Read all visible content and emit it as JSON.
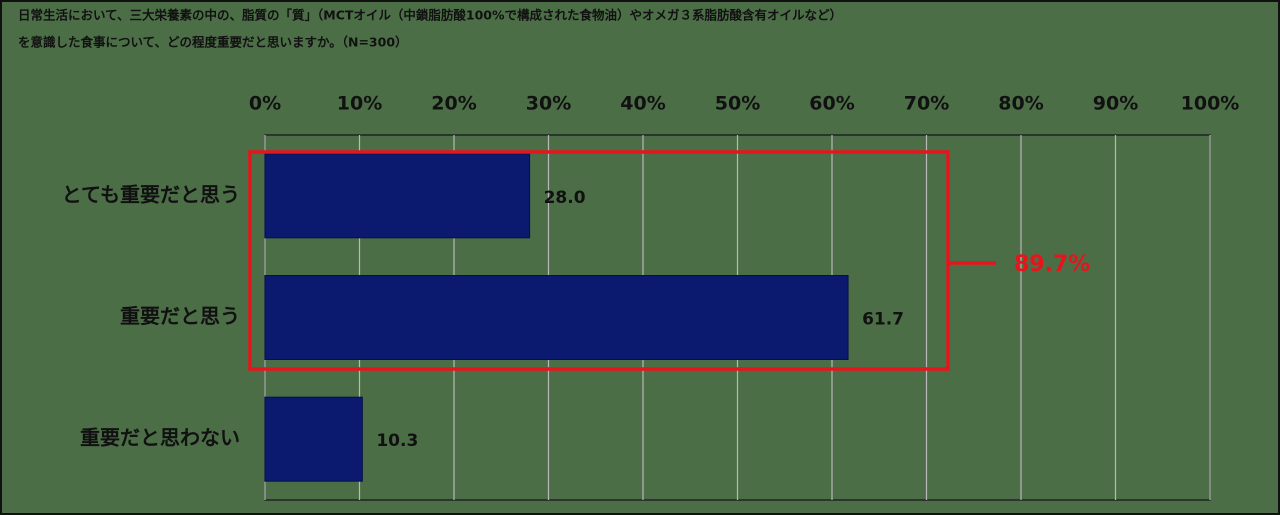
{
  "chart_data": {
    "type": "bar",
    "orientation": "horizontal",
    "title": [
      "日常生活において、三大栄養素の中の、脂質の「質」（MCTオイル（中鎖脂肪酸100%で構成された食物油）やオメガ３系脂肪酸含有オイルなど）",
      "を意識した食事について、どの程度重要だと思いますか。（N=300）"
    ],
    "categories": [
      "とても重要だと思う",
      "重要だと思う",
      "重要だと思わない"
    ],
    "values": [
      28.0,
      61.7,
      10.3
    ],
    "value_labels": [
      "28.0",
      "61.7",
      "10.3"
    ],
    "color": "#0b1a6e",
    "xlim": [
      0,
      100
    ],
    "xticks": [
      {
        "value": 0,
        "label": "0%"
      },
      {
        "value": 10,
        "label": "10%"
      },
      {
        "value": 20,
        "label": "20%"
      },
      {
        "value": 30,
        "label": "30%"
      },
      {
        "value": 40,
        "label": "40%"
      },
      {
        "value": 50,
        "label": "50%"
      },
      {
        "value": 60,
        "label": "60%"
      },
      {
        "value": 70,
        "label": "70%"
      },
      {
        "value": 80,
        "label": "80%"
      },
      {
        "value": 90,
        "label": "90%"
      },
      {
        "value": 100,
        "label": "100%"
      }
    ],
    "grid": true,
    "annotation": "89.7%"
  }
}
